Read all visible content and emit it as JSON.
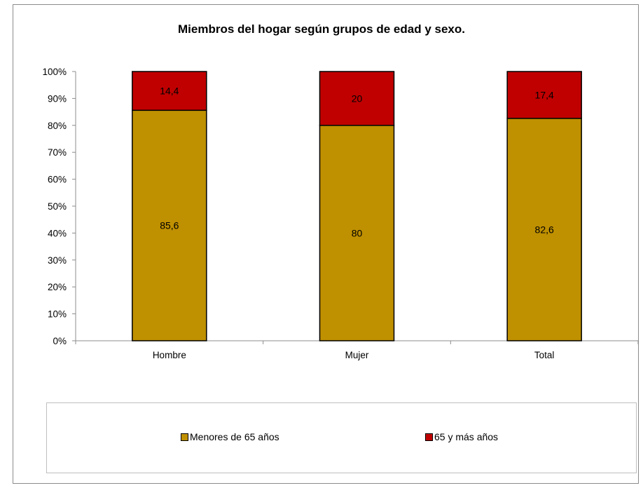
{
  "chart_data": {
    "type": "bar",
    "stacked": true,
    "title": "Miembros del hogar según grupos de edad y sexo.",
    "categories": [
      "Hombre",
      "Mujer",
      "Total"
    ],
    "series": [
      {
        "name": "Menores de 65 años",
        "values": [
          85.6,
          80,
          82.6
        ],
        "labels": [
          "85,6",
          "80",
          "82,6"
        ],
        "color": "#bf9000"
      },
      {
        "name": "65 y más años",
        "values": [
          14.4,
          20,
          17.4
        ],
        "labels": [
          "14,4",
          "20",
          "17,4"
        ],
        "color": "#c00000"
      }
    ],
    "ylim": [
      0,
      100
    ],
    "yticks": [
      "0%",
      "10%",
      "20%",
      "30%",
      "40%",
      "50%",
      "60%",
      "70%",
      "80%",
      "90%",
      "100%"
    ],
    "legend_position": "bottom",
    "grid": false
  }
}
